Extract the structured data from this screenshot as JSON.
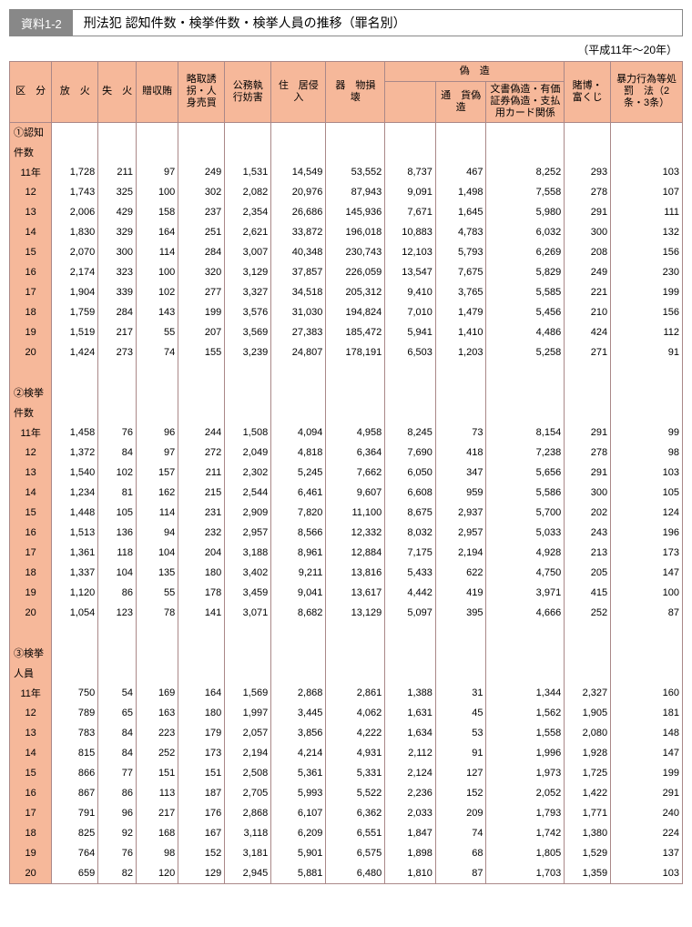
{
  "header": {
    "tag": "資料1-2",
    "title": "刑法犯 認知件数・検挙件数・検挙人員の推移（罪名別）",
    "subtitle": "（平成11年～20年）"
  },
  "columns": [
    "区　分",
    "放　火",
    "失　火",
    "贈収賄",
    "略取誘拐・人身売買",
    "公務執行妨害",
    "住　居侵　入",
    "器　物損　壊",
    "偽　造",
    "通　貨偽　造",
    "文書偽造・有価証券偽造・支払用カード関係",
    "賭博・富くじ",
    "暴力行為等処　罰　法（2条・3条）"
  ],
  "sections": [
    {
      "label": "①認知件数",
      "rows": [
        {
          "y": "11年",
          "v": [
            "1,728",
            "211",
            "97",
            "249",
            "1,531",
            "14,549",
            "53,552",
            "8,737",
            "467",
            "8,252",
            "293",
            "103"
          ]
        },
        {
          "y": "12",
          "v": [
            "1,743",
            "325",
            "100",
            "302",
            "2,082",
            "20,976",
            "87,943",
            "9,091",
            "1,498",
            "7,558",
            "278",
            "107"
          ]
        },
        {
          "y": "13",
          "v": [
            "2,006",
            "429",
            "158",
            "237",
            "2,354",
            "26,686",
            "145,936",
            "7,671",
            "1,645",
            "5,980",
            "291",
            "111"
          ]
        },
        {
          "y": "14",
          "v": [
            "1,830",
            "329",
            "164",
            "251",
            "2,621",
            "33,872",
            "196,018",
            "10,883",
            "4,783",
            "6,032",
            "300",
            "132"
          ]
        },
        {
          "y": "15",
          "v": [
            "2,070",
            "300",
            "114",
            "284",
            "3,007",
            "40,348",
            "230,743",
            "12,103",
            "5,793",
            "6,269",
            "208",
            "156"
          ]
        },
        {
          "y": "16",
          "v": [
            "2,174",
            "323",
            "100",
            "320",
            "3,129",
            "37,857",
            "226,059",
            "13,547",
            "7,675",
            "5,829",
            "249",
            "230"
          ]
        },
        {
          "y": "17",
          "v": [
            "1,904",
            "339",
            "102",
            "277",
            "3,327",
            "34,518",
            "205,312",
            "9,410",
            "3,765",
            "5,585",
            "221",
            "199"
          ]
        },
        {
          "y": "18",
          "v": [
            "1,759",
            "284",
            "143",
            "199",
            "3,576",
            "31,030",
            "194,824",
            "7,010",
            "1,479",
            "5,456",
            "210",
            "156"
          ]
        },
        {
          "y": "19",
          "v": [
            "1,519",
            "217",
            "55",
            "207",
            "3,569",
            "27,383",
            "185,472",
            "5,941",
            "1,410",
            "4,486",
            "424",
            "112"
          ]
        },
        {
          "y": "20",
          "v": [
            "1,424",
            "273",
            "74",
            "155",
            "3,239",
            "24,807",
            "178,191",
            "6,503",
            "1,203",
            "5,258",
            "271",
            "91"
          ]
        }
      ]
    },
    {
      "label": "②検挙件数",
      "rows": [
        {
          "y": "11年",
          "v": [
            "1,458",
            "76",
            "96",
            "244",
            "1,508",
            "4,094",
            "4,958",
            "8,245",
            "73",
            "8,154",
            "291",
            "99"
          ]
        },
        {
          "y": "12",
          "v": [
            "1,372",
            "84",
            "97",
            "272",
            "2,049",
            "4,818",
            "6,364",
            "7,690",
            "418",
            "7,238",
            "278",
            "98"
          ]
        },
        {
          "y": "13",
          "v": [
            "1,540",
            "102",
            "157",
            "211",
            "2,302",
            "5,245",
            "7,662",
            "6,050",
            "347",
            "5,656",
            "291",
            "103"
          ]
        },
        {
          "y": "14",
          "v": [
            "1,234",
            "81",
            "162",
            "215",
            "2,544",
            "6,461",
            "9,607",
            "6,608",
            "959",
            "5,586",
            "300",
            "105"
          ]
        },
        {
          "y": "15",
          "v": [
            "1,448",
            "105",
            "114",
            "231",
            "2,909",
            "7,820",
            "11,100",
            "8,675",
            "2,937",
            "5,700",
            "202",
            "124"
          ]
        },
        {
          "y": "16",
          "v": [
            "1,513",
            "136",
            "94",
            "232",
            "2,957",
            "8,566",
            "12,332",
            "8,032",
            "2,957",
            "5,033",
            "243",
            "196"
          ]
        },
        {
          "y": "17",
          "v": [
            "1,361",
            "118",
            "104",
            "204",
            "3,188",
            "8,961",
            "12,884",
            "7,175",
            "2,194",
            "4,928",
            "213",
            "173"
          ]
        },
        {
          "y": "18",
          "v": [
            "1,337",
            "104",
            "135",
            "180",
            "3,402",
            "9,211",
            "13,816",
            "5,433",
            "622",
            "4,750",
            "205",
            "147"
          ]
        },
        {
          "y": "19",
          "v": [
            "1,120",
            "86",
            "55",
            "178",
            "3,459",
            "9,041",
            "13,617",
            "4,442",
            "419",
            "3,971",
            "415",
            "100"
          ]
        },
        {
          "y": "20",
          "v": [
            "1,054",
            "123",
            "78",
            "141",
            "3,071",
            "8,682",
            "13,129",
            "5,097",
            "395",
            "4,666",
            "252",
            "87"
          ]
        }
      ]
    },
    {
      "label": "③検挙人員",
      "rows": [
        {
          "y": "11年",
          "v": [
            "750",
            "54",
            "169",
            "164",
            "1,569",
            "2,868",
            "2,861",
            "1,388",
            "31",
            "1,344",
            "2,327",
            "160"
          ]
        },
        {
          "y": "12",
          "v": [
            "789",
            "65",
            "163",
            "180",
            "1,997",
            "3,445",
            "4,062",
            "1,631",
            "45",
            "1,562",
            "1,905",
            "181"
          ]
        },
        {
          "y": "13",
          "v": [
            "783",
            "84",
            "223",
            "179",
            "2,057",
            "3,856",
            "4,222",
            "1,634",
            "53",
            "1,558",
            "2,080",
            "148"
          ]
        },
        {
          "y": "14",
          "v": [
            "815",
            "84",
            "252",
            "173",
            "2,194",
            "4,214",
            "4,931",
            "2,112",
            "91",
            "1,996",
            "1,928",
            "147"
          ]
        },
        {
          "y": "15",
          "v": [
            "866",
            "77",
            "151",
            "151",
            "2,508",
            "5,361",
            "5,331",
            "2,124",
            "127",
            "1,973",
            "1,725",
            "199"
          ]
        },
        {
          "y": "16",
          "v": [
            "867",
            "86",
            "113",
            "187",
            "2,705",
            "5,993",
            "5,522",
            "2,236",
            "152",
            "2,052",
            "1,422",
            "291"
          ]
        },
        {
          "y": "17",
          "v": [
            "791",
            "96",
            "217",
            "176",
            "2,868",
            "6,107",
            "6,362",
            "2,033",
            "209",
            "1,793",
            "1,771",
            "240"
          ]
        },
        {
          "y": "18",
          "v": [
            "825",
            "92",
            "168",
            "167",
            "3,118",
            "6,209",
            "6,551",
            "1,847",
            "74",
            "1,742",
            "1,380",
            "224"
          ]
        },
        {
          "y": "19",
          "v": [
            "764",
            "76",
            "98",
            "152",
            "3,181",
            "5,901",
            "6,575",
            "1,898",
            "68",
            "1,805",
            "1,529",
            "137"
          ]
        },
        {
          "y": "20",
          "v": [
            "659",
            "82",
            "120",
            "129",
            "2,945",
            "5,881",
            "6,480",
            "1,810",
            "87",
            "1,703",
            "1,359",
            "103"
          ]
        }
      ]
    }
  ]
}
